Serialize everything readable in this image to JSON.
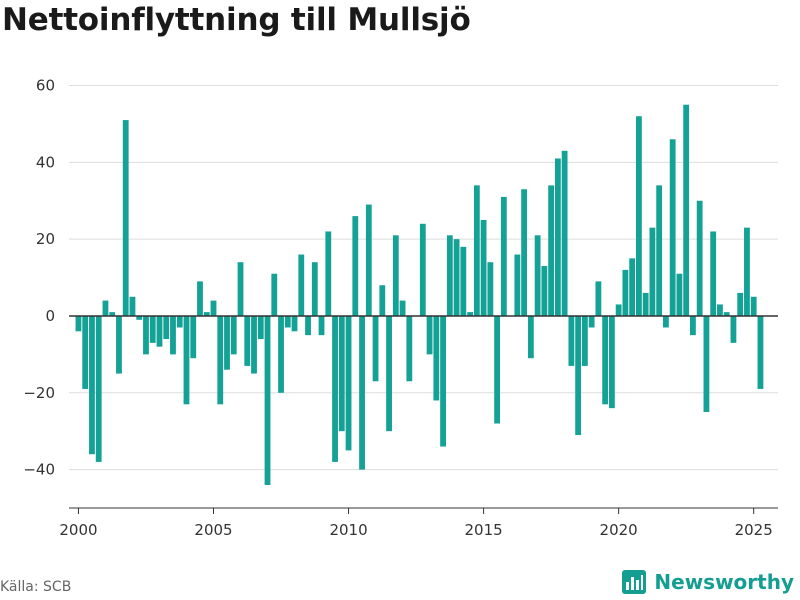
{
  "title": "Nettoinflyttning till Mullsjö",
  "source": "Källa: SCB",
  "brand": {
    "name": "Newsworthy",
    "icon": "bar-chart-icon"
  },
  "colors": {
    "bar": "#14a196",
    "grid": "#dddddd",
    "zero_line": "#333333",
    "axis": "#333333",
    "brand": "#149e92"
  },
  "chart_data": {
    "type": "bar",
    "title": "Nettoinflyttning till Mullsjö",
    "xlabel": "",
    "ylabel": "",
    "xlim": [
      1999.65,
      2025.9
    ],
    "ylim": [
      -50,
      63
    ],
    "yticks": [
      -40,
      -20,
      0,
      20,
      40,
      60
    ],
    "ytick_labels": [
      "−40",
      "−20",
      "0",
      "20",
      "40",
      "60"
    ],
    "xticks": [
      2000,
      2005,
      2010,
      2015,
      2020,
      2025
    ],
    "xtick_labels": [
      "2000",
      "2005",
      "2010",
      "2015",
      "2020",
      "2025"
    ],
    "grid": true,
    "bar_period": "quarter",
    "series": [
      {
        "start_year": 2000,
        "values": [
          -4,
          -19,
          -36,
          -38,
          4,
          1,
          -15,
          51,
          5,
          -1,
          -10,
          -7,
          -8,
          -6,
          -10,
          -3,
          -23,
          -11,
          9,
          1,
          4,
          -23,
          -14,
          -10,
          14,
          -13,
          -15,
          -6,
          -44,
          11,
          -20,
          -3,
          -4,
          16,
          -5,
          14,
          -5,
          22,
          -38,
          -30,
          -35,
          26,
          -40,
          29,
          -17,
          8,
          -30,
          21,
          4,
          -17,
          0,
          24,
          -10,
          -22,
          -34,
          21,
          20,
          18,
          1,
          34,
          25,
          14,
          -28,
          31,
          0,
          16,
          33,
          -11,
          21,
          13,
          34,
          41,
          43,
          -13,
          -31,
          -13,
          -3,
          9,
          -23,
          -24,
          3,
          12,
          15,
          52,
          6,
          23,
          34,
          -3,
          46,
          11,
          55,
          -5,
          30,
          -25,
          22,
          3,
          1,
          -7,
          6,
          23,
          5,
          -19
        ]
      }
    ]
  }
}
